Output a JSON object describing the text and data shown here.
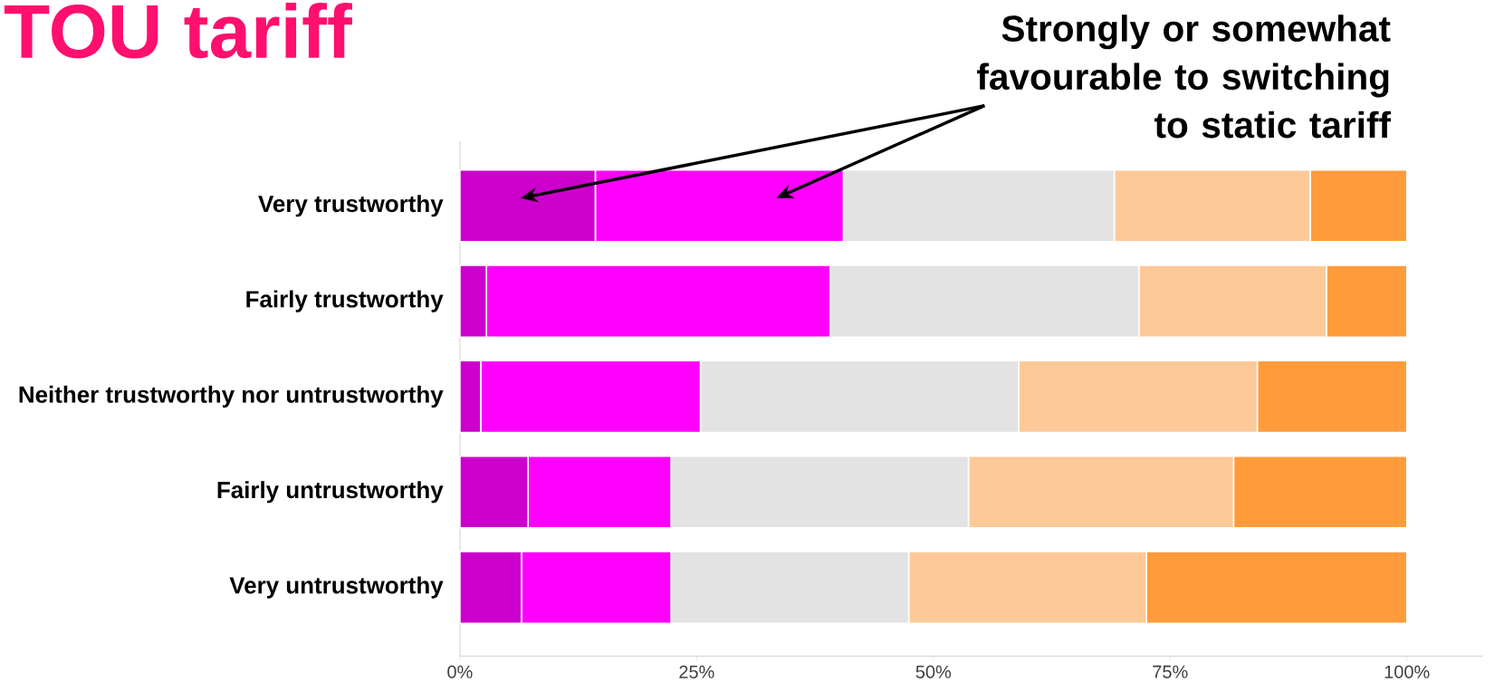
{
  "chart_data": {
    "type": "bar",
    "orientation": "horizontal",
    "stacked": true,
    "title": "TOU tariff",
    "annotations": [
      "Strongly or somewhat favourable to switching to static tariff"
    ],
    "categories": [
      "Very trustworthy",
      "Fairly trustworthy",
      "Neither trustworthy nor untrustworthy",
      "Fairly untrustworthy",
      "Very untrustworthy"
    ],
    "series": [
      {
        "color": "#cc00cc",
        "values": [
          14.3,
          2.8,
          2.2,
          7.2,
          6.5
        ]
      },
      {
        "color": "#ff00ff",
        "values": [
          26.2,
          36.3,
          23.2,
          15.1,
          15.8
        ]
      },
      {
        "color": "#e3e3e3",
        "values": [
          28.6,
          32.6,
          33.6,
          31.4,
          25.1
        ]
      },
      {
        "color": "#fdc998",
        "values": [
          20.7,
          19.8,
          25.2,
          28.0,
          25.1
        ]
      },
      {
        "color": "#ff9b3a",
        "values": [
          10.2,
          8.5,
          15.8,
          18.3,
          27.5
        ]
      }
    ],
    "xlim": [
      0,
      108
    ],
    "xticks": [
      {
        "value": 0,
        "label": "0%"
      },
      {
        "value": 25,
        "label": "25%"
      },
      {
        "value": 50,
        "label": "50%"
      },
      {
        "value": 75,
        "label": "75%"
      },
      {
        "value": 100,
        "label": "100%"
      }
    ],
    "grid": false
  }
}
